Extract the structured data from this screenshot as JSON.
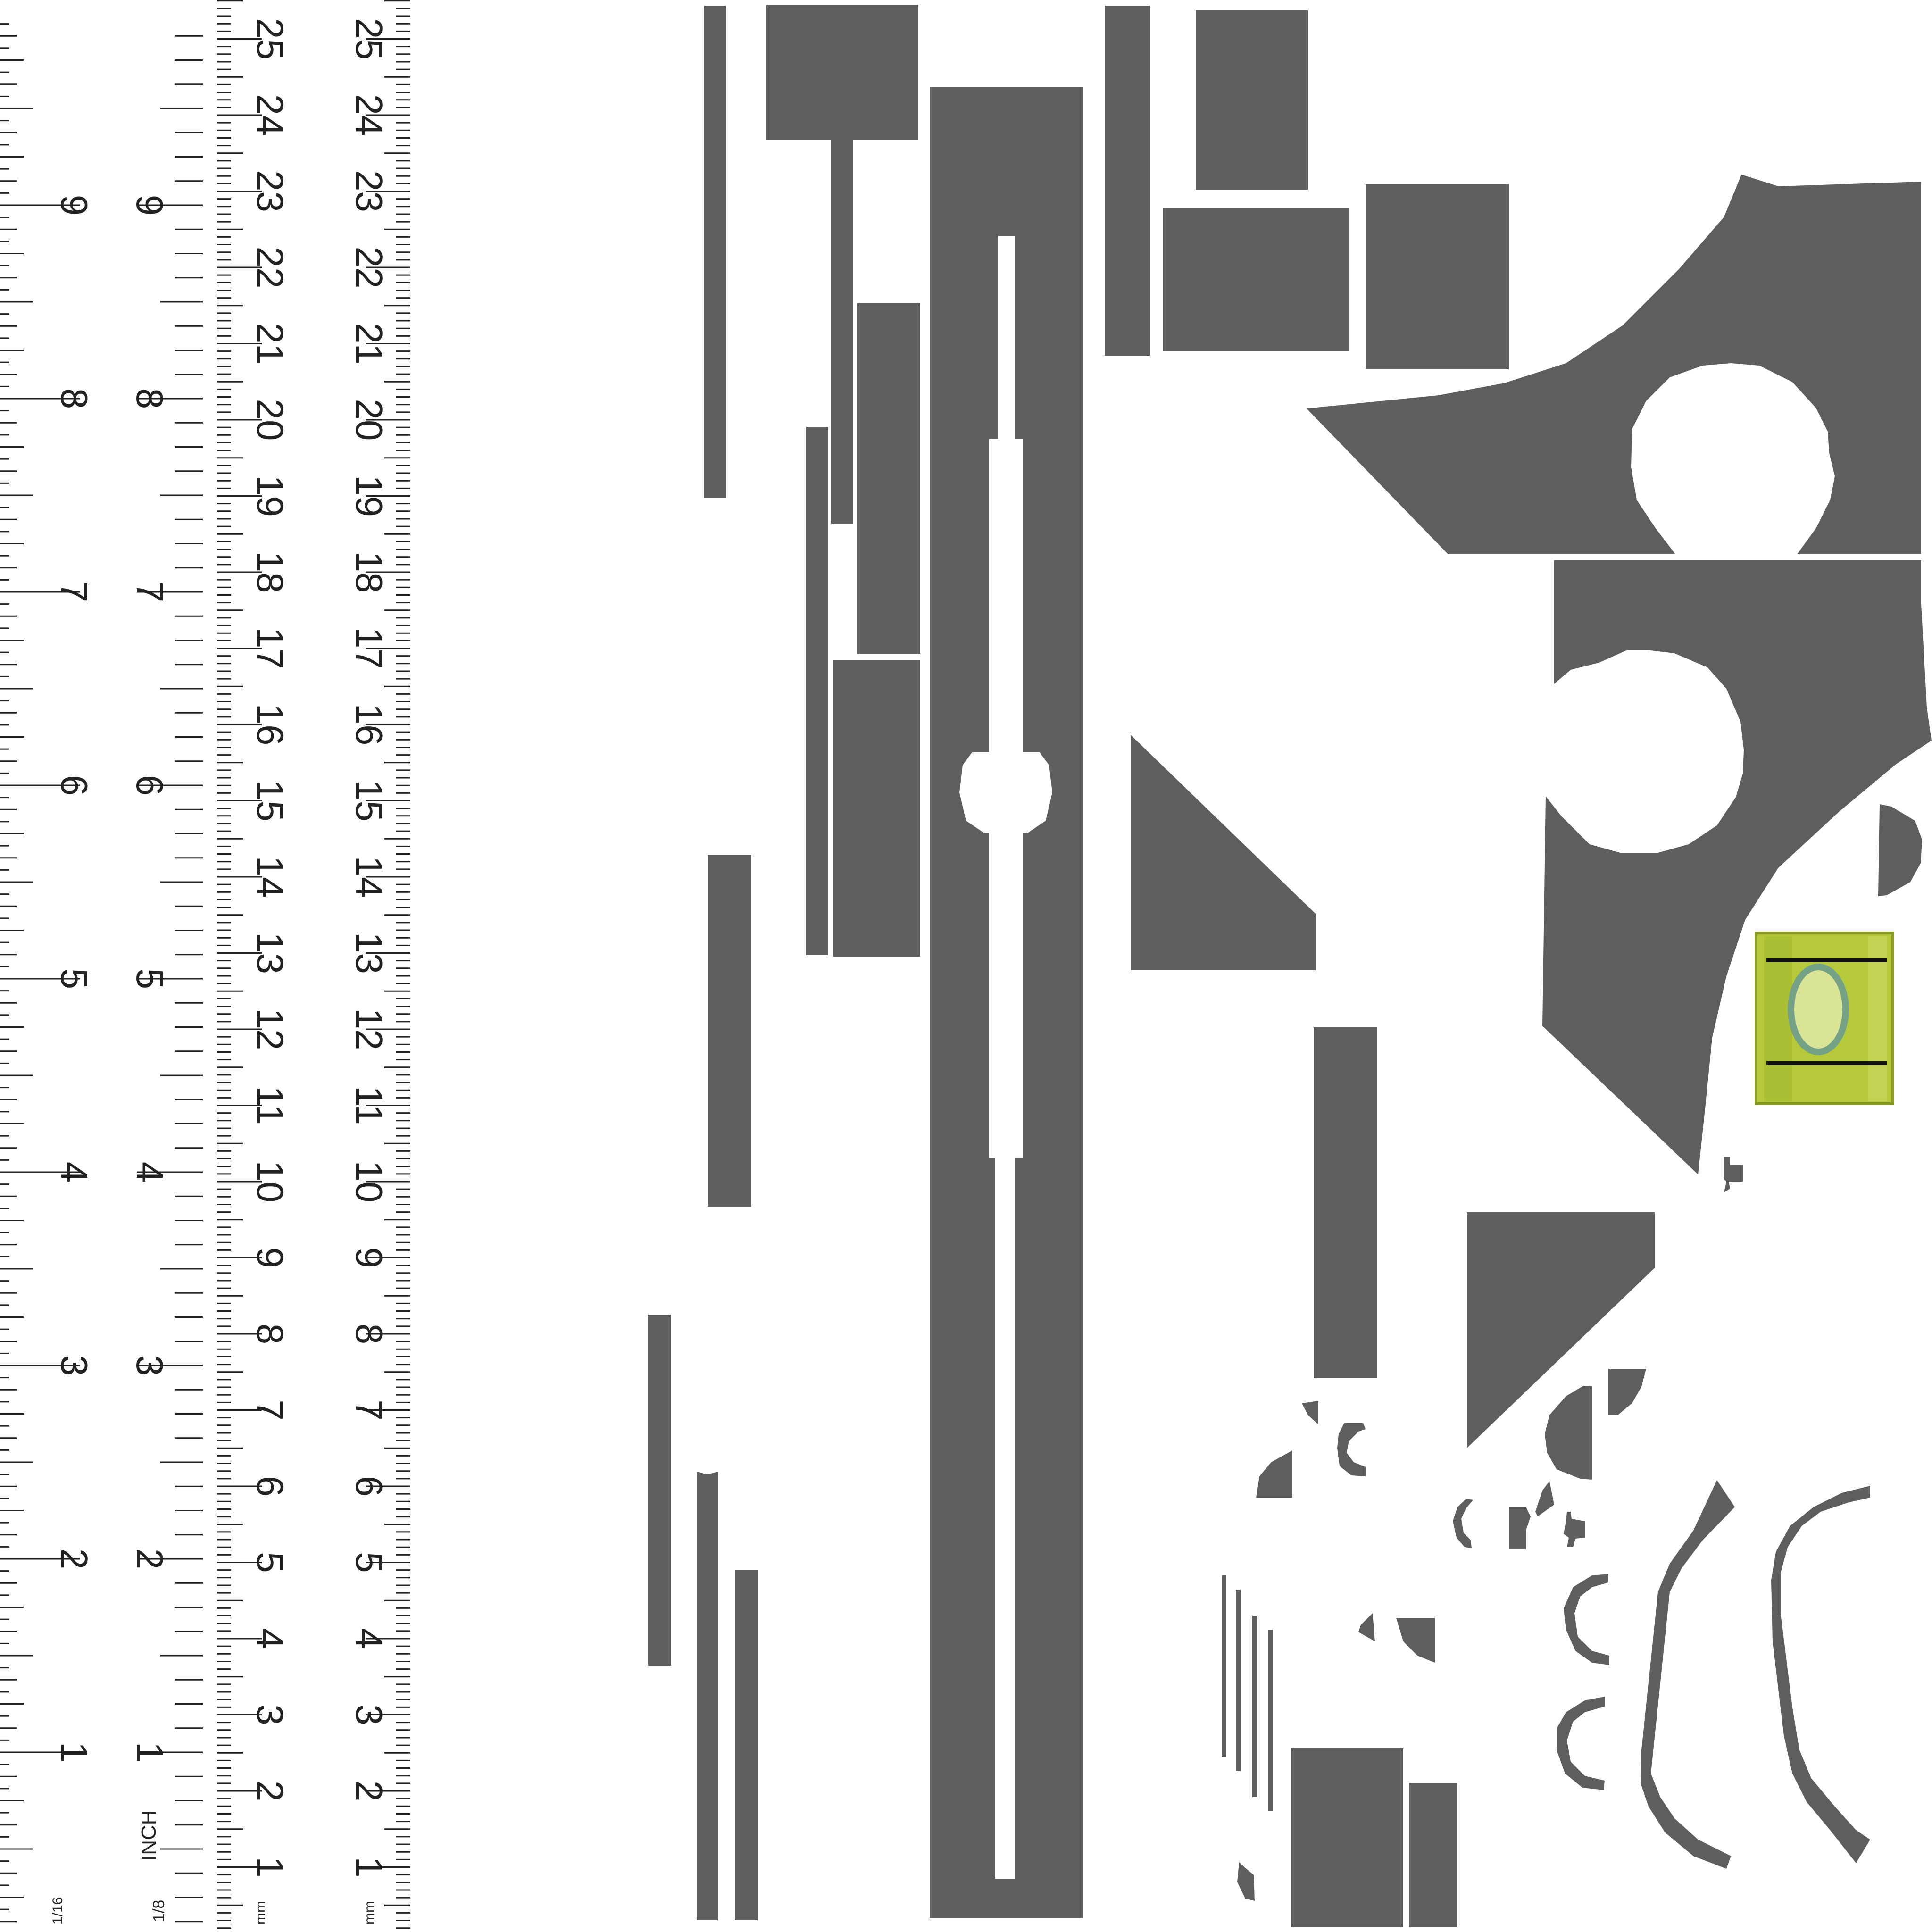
{
  "ruler": {
    "inch_numbers": [
      "1",
      "2",
      "3",
      "4",
      "5",
      "6",
      "7",
      "8",
      "9"
    ],
    "mm_numbers": [
      "1",
      "2",
      "3",
      "4",
      "5",
      "6",
      "7",
      "8",
      "9",
      "10",
      "11",
      "12",
      "13",
      "14",
      "15",
      "16",
      "17",
      "18",
      "19",
      "20",
      "21",
      "22",
      "23",
      "24",
      "25"
    ],
    "labels": {
      "sixteenth": "1/16",
      "eighth": "1/8",
      "inch": "INCH",
      "mm_a": "mm",
      "mm_b": "mm"
    }
  },
  "colors": {
    "background": "#ffffff",
    "piece": "#5e5e5e",
    "ruler_ink": "#222222",
    "bubble_vial": "#b5c93a",
    "bubble_line": "#111111"
  },
  "pieces_icon": "cut-template-pieces",
  "vial_icon": "bubble-level-vial"
}
